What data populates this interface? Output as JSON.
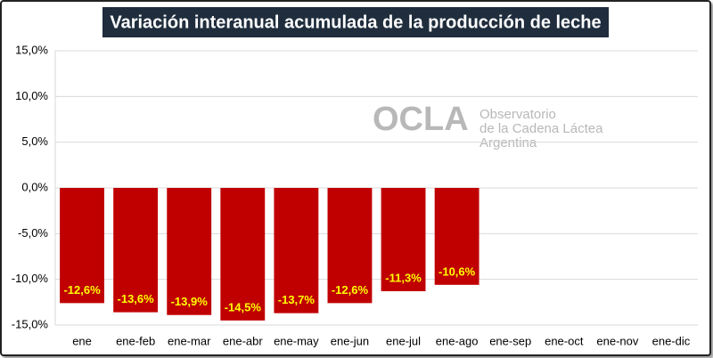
{
  "chart_data": {
    "type": "bar",
    "title": "Variación interanual acumulada de la producción de leche",
    "watermark": [
      "OCLA",
      "Observatorio",
      "de la Cadena Láctea",
      "Argentina"
    ],
    "categories": [
      "ene",
      "ene-feb",
      "ene-mar",
      "ene-abr",
      "ene-may",
      "ene-jun",
      "ene-jul",
      "ene-ago",
      "ene-sep",
      "ene-oct",
      "ene-nov",
      "ene-dic"
    ],
    "values": [
      -12.6,
      -13.6,
      -13.9,
      -14.5,
      -13.7,
      -12.6,
      -11.3,
      -10.6,
      null,
      null,
      null,
      null
    ],
    "value_labels": [
      "-12,6%",
      "-13,6%",
      "-13,9%",
      "-14,5%",
      "-13,7%",
      "-12,6%",
      "-11,3%",
      "-10,6%",
      null,
      null,
      null,
      null
    ],
    "color": "#c00000",
    "ylim": [
      -15,
      15
    ],
    "yticks": [
      {
        "value": -15,
        "label": "-15,0%"
      },
      {
        "value": -10,
        "label": "-10,0%"
      },
      {
        "value": -5,
        "label": "-5,0%"
      },
      {
        "value": 0,
        "label": "0,0%"
      },
      {
        "value": 5,
        "label": "5,0%"
      },
      {
        "value": 10,
        "label": "10,0%"
      },
      {
        "value": 15,
        "label": "15,0%"
      }
    ],
    "grid": true
  }
}
